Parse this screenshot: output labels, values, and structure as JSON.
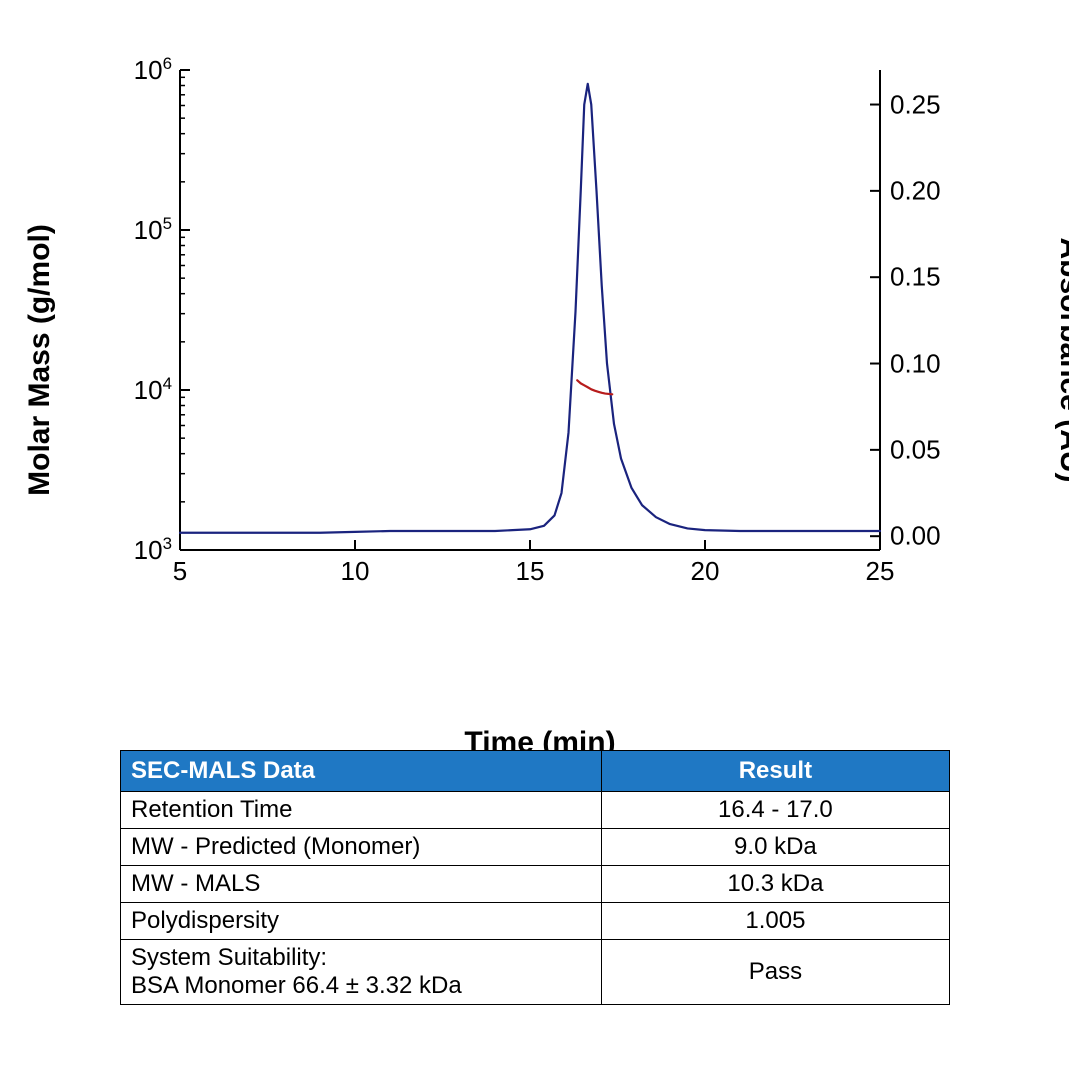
{
  "chart": {
    "type": "line-dual-axis",
    "background_color": "#ffffff",
    "x_axis": {
      "label": "Time (min)",
      "min": 5,
      "max": 25,
      "ticks": [
        5,
        10,
        15,
        20,
        25
      ],
      "label_fontsize": 30,
      "tick_fontsize": 26,
      "color": "#000000"
    },
    "y1_axis": {
      "label": "Molar Mass (g/mol)",
      "scale": "log",
      "min": 1000,
      "max": 1000000,
      "ticks": [
        1000,
        10000,
        100000,
        1000000
      ],
      "tick_labels_html": [
        "10<sup>3</sup>",
        "10<sup>4</sup>",
        "10<sup>5</sup>",
        "10<sup>6</sup>"
      ],
      "label_fontsize": 30,
      "tick_fontsize": 26,
      "color": "#000000"
    },
    "y2_axis": {
      "label": "Absorbance (AU)",
      "scale": "linear",
      "min": -0.008,
      "max": 0.27,
      "ticks": [
        0.0,
        0.05,
        0.1,
        0.15,
        0.2,
        0.25
      ],
      "tick_labels": [
        "0.00",
        "0.05",
        "0.10",
        "0.15",
        "0.20",
        "0.25"
      ],
      "label_fontsize": 30,
      "tick_fontsize": 26,
      "color": "#000000"
    },
    "series": [
      {
        "name": "absorbance",
        "axis": "y2",
        "color": "#1a237e",
        "line_width": 2.2,
        "data": [
          [
            5.0,
            0.002
          ],
          [
            6.0,
            0.002
          ],
          [
            7.0,
            0.002
          ],
          [
            8.0,
            0.002
          ],
          [
            9.0,
            0.002
          ],
          [
            10.0,
            0.0025
          ],
          [
            11.0,
            0.003
          ],
          [
            12.0,
            0.003
          ],
          [
            13.0,
            0.003
          ],
          [
            14.0,
            0.003
          ],
          [
            14.5,
            0.0035
          ],
          [
            15.0,
            0.004
          ],
          [
            15.4,
            0.006
          ],
          [
            15.7,
            0.012
          ],
          [
            15.9,
            0.025
          ],
          [
            16.1,
            0.06
          ],
          [
            16.3,
            0.13
          ],
          [
            16.45,
            0.2
          ],
          [
            16.55,
            0.25
          ],
          [
            16.65,
            0.262
          ],
          [
            16.75,
            0.25
          ],
          [
            16.9,
            0.2
          ],
          [
            17.05,
            0.145
          ],
          [
            17.2,
            0.1
          ],
          [
            17.4,
            0.065
          ],
          [
            17.6,
            0.045
          ],
          [
            17.9,
            0.028
          ],
          [
            18.2,
            0.018
          ],
          [
            18.6,
            0.011
          ],
          [
            19.0,
            0.007
          ],
          [
            19.5,
            0.0045
          ],
          [
            20.0,
            0.0035
          ],
          [
            21.0,
            0.003
          ],
          [
            22.0,
            0.003
          ],
          [
            23.0,
            0.003
          ],
          [
            24.0,
            0.003
          ],
          [
            25.0,
            0.003
          ]
        ]
      },
      {
        "name": "molar-mass",
        "axis": "y1",
        "color": "#b71c1c",
        "line_width": 2.2,
        "data": [
          [
            16.35,
            11500
          ],
          [
            16.45,
            11000
          ],
          [
            16.55,
            10700
          ],
          [
            16.65,
            10400
          ],
          [
            16.75,
            10100
          ],
          [
            16.85,
            9900
          ],
          [
            16.95,
            9750
          ],
          [
            17.05,
            9600
          ],
          [
            17.15,
            9500
          ],
          [
            17.25,
            9450
          ],
          [
            17.35,
            9400
          ]
        ]
      }
    ],
    "axis_line_color": "#000000",
    "axis_line_width": 2,
    "tick_length_major": 10,
    "tick_length_minor": 5,
    "y1_minor_ticks_per_decade": 8
  },
  "table": {
    "header_bg": "#1f78c4",
    "header_fg": "#ffffff",
    "border_color": "#000000",
    "font_size": 24,
    "columns": [
      {
        "key": "label",
        "header": "SEC-MALS Data",
        "align": "left",
        "width_pct": 58
      },
      {
        "key": "result",
        "header": "Result",
        "align": "center",
        "width_pct": 42
      }
    ],
    "rows": [
      {
        "label": "Retention Time",
        "result": "16.4 - 17.0"
      },
      {
        "label": "MW - Predicted (Monomer)",
        "result": "9.0 kDa"
      },
      {
        "label": "MW - MALS",
        "result": "10.3 kDa"
      },
      {
        "label": "Polydispersity",
        "result": "1.005"
      },
      {
        "label": "System Suitability:\nBSA Monomer 66.4 ± 3.32 kDa",
        "result": "Pass"
      }
    ]
  }
}
